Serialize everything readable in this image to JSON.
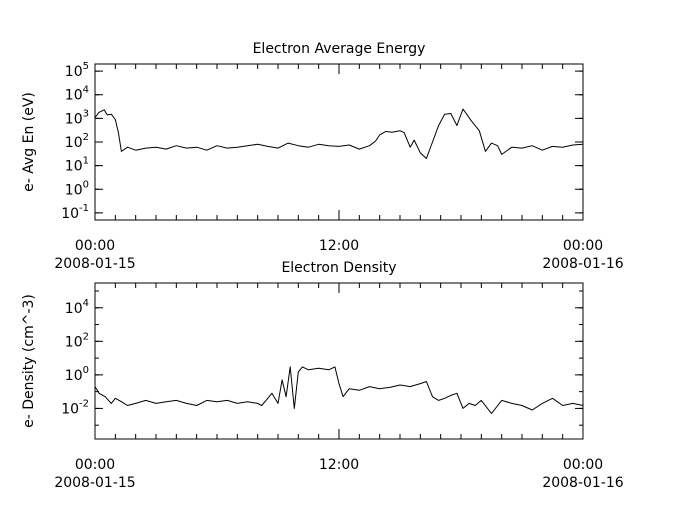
{
  "chart_data": [
    {
      "type": "line",
      "title": "Electron Average Energy",
      "ylabel": "e- Avg En (eV)",
      "xlabel": "",
      "yscale": "log",
      "ylim": [
        0.05,
        200000
      ],
      "y_tick_exponents": [
        -1,
        0,
        1,
        2,
        3,
        4,
        5
      ],
      "x_axis": {
        "range_hours": [
          0,
          24
        ],
        "major_tick_hours": [
          0,
          12,
          24
        ],
        "tick_labels": [
          {
            "time": "00:00",
            "date": "2008-01-15"
          },
          {
            "time": "12:00",
            "date": ""
          },
          {
            "time": "00:00",
            "date": "2008-01-16"
          }
        ]
      },
      "grid": false,
      "legend": "none",
      "series": [
        {
          "x_hours": [
            0.0,
            0.2,
            0.45,
            0.6,
            0.8,
            1.0,
            1.15,
            1.3,
            1.6,
            2.0,
            2.5,
            3.0,
            3.5,
            4.0,
            4.5,
            5.0,
            5.5,
            6.0,
            6.5,
            7.0,
            7.5,
            8.0,
            8.5,
            9.0,
            9.5,
            10.0,
            10.5,
            11.0,
            11.5,
            12.0,
            12.5,
            13.0,
            13.5,
            13.8,
            14.0,
            14.3,
            14.6,
            15.0,
            15.2,
            15.5,
            15.7,
            16.0,
            16.3,
            16.6,
            16.9,
            17.2,
            17.5,
            17.8,
            18.1,
            18.5,
            18.9,
            19.2,
            19.5,
            19.8,
            20.0,
            20.5,
            21.0,
            21.5,
            22.0,
            22.5,
            23.0,
            23.5,
            24.0
          ],
          "y": [
            1100,
            1800,
            2300,
            1400,
            1500,
            900,
            250,
            40,
            60,
            45,
            55,
            60,
            50,
            70,
            55,
            60,
            45,
            70,
            55,
            60,
            70,
            80,
            65,
            55,
            90,
            70,
            60,
            80,
            70,
            65,
            75,
            50,
            70,
            110,
            200,
            280,
            260,
            300,
            250,
            60,
            120,
            35,
            20,
            100,
            500,
            1500,
            1600,
            500,
            2500,
            800,
            300,
            40,
            90,
            70,
            30,
            60,
            55,
            70,
            45,
            65,
            60,
            75,
            80
          ]
        }
      ]
    },
    {
      "type": "line",
      "title": "Electron Density",
      "ylabel": "e- Density (cm^-3)",
      "xlabel": "",
      "yscale": "log",
      "ylim": [
        0.00015,
        300000
      ],
      "y_tick_exponents": [
        -2,
        0,
        2,
        4
      ],
      "x_axis": {
        "range_hours": [
          0,
          24
        ],
        "major_tick_hours": [
          0,
          12,
          24
        ],
        "tick_labels": [
          {
            "time": "00:00",
            "date": "2008-01-15"
          },
          {
            "time": "12:00",
            "date": ""
          },
          {
            "time": "00:00",
            "date": "2008-01-16"
          }
        ]
      },
      "grid": false,
      "legend": "none",
      "series": [
        {
          "x_hours": [
            0.0,
            0.2,
            0.5,
            0.8,
            1.0,
            1.3,
            1.6,
            2.0,
            2.5,
            3.0,
            3.5,
            4.0,
            4.5,
            5.0,
            5.5,
            6.0,
            6.5,
            7.0,
            7.5,
            8.0,
            8.2,
            8.5,
            8.7,
            9.0,
            9.2,
            9.4,
            9.6,
            9.8,
            10.0,
            10.2,
            10.5,
            11.0,
            11.5,
            11.8,
            12.0,
            12.2,
            12.5,
            13.0,
            13.5,
            14.0,
            14.5,
            15.0,
            15.5,
            16.0,
            16.3,
            16.6,
            16.9,
            17.2,
            17.5,
            17.8,
            18.1,
            18.4,
            18.7,
            19.0,
            19.5,
            20.0,
            20.5,
            21.0,
            21.5,
            22.0,
            22.5,
            23.0,
            23.5,
            24.0
          ],
          "y": [
            0.2,
            0.08,
            0.05,
            0.02,
            0.04,
            0.025,
            0.015,
            0.02,
            0.03,
            0.02,
            0.025,
            0.03,
            0.02,
            0.015,
            0.03,
            0.025,
            0.03,
            0.02,
            0.025,
            0.02,
            0.015,
            0.04,
            0.08,
            0.02,
            0.5,
            0.05,
            3,
            0.01,
            1.5,
            3,
            2,
            2.5,
            2,
            3,
            0.3,
            0.05,
            0.15,
            0.12,
            0.2,
            0.15,
            0.18,
            0.25,
            0.2,
            0.3,
            0.4,
            0.05,
            0.03,
            0.04,
            0.06,
            0.08,
            0.01,
            0.02,
            0.015,
            0.03,
            0.005,
            0.03,
            0.02,
            0.015,
            0.008,
            0.02,
            0.04,
            0.015,
            0.02,
            0.015
          ]
        }
      ]
    }
  ]
}
